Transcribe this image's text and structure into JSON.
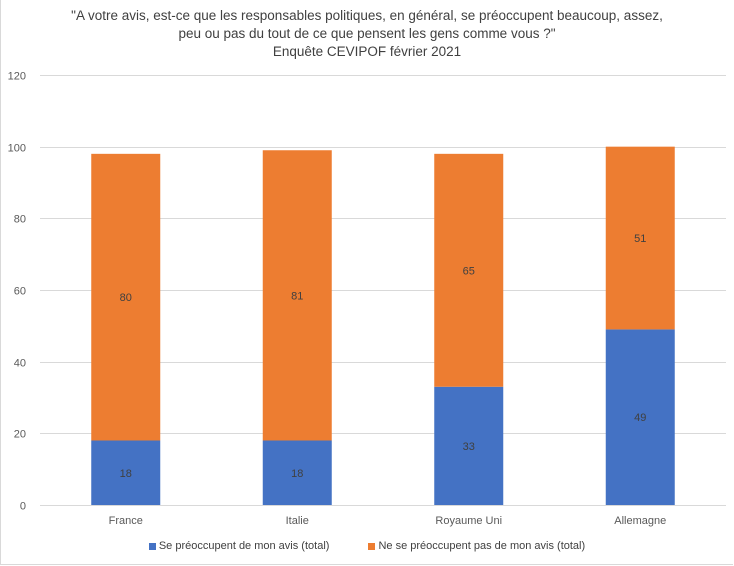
{
  "chart_data": {
    "type": "bar",
    "stacked": true,
    "title_lines": [
      "\"A votre avis, est-ce que les responsables politiques, en général, se préoccupent beaucoup, assez,",
      "peu ou pas du tout de ce que pensent les gens comme vous ?\"",
      "Enquête CEVIPOF février 2021"
    ],
    "categories": [
      "France",
      "Italie",
      "Royaume Uni",
      "Allemagne"
    ],
    "series": [
      {
        "name": "Se préoccupent de mon avis (total)",
        "color": "#4472c4",
        "values": [
          18,
          18,
          33,
          49
        ]
      },
      {
        "name": "Ne se préoccupent pas de mon avis (total)",
        "color": "#ed7d31",
        "values": [
          80,
          81,
          65,
          51
        ]
      }
    ],
    "ylim": [
      0,
      120
    ],
    "yticks": [
      0,
      20,
      40,
      60,
      80,
      100,
      120
    ],
    "xlabel": "",
    "ylabel": "",
    "grid": true,
    "legend_position": "bottom",
    "data_labels": true
  }
}
